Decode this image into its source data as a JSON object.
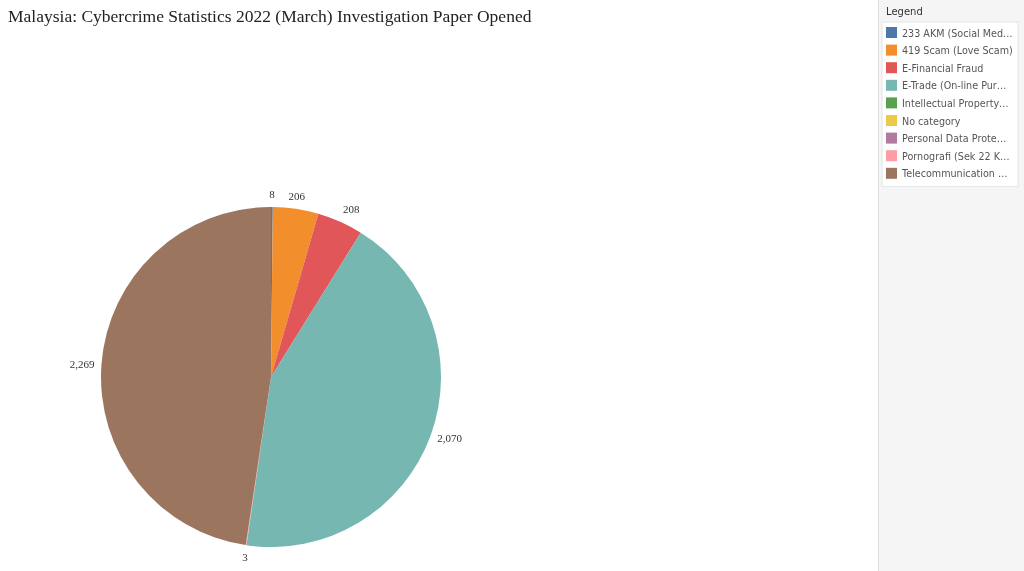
{
  "chart_data": {
    "type": "pie",
    "title": "Malaysia: Cybercrime Statistics 2022 (March) Investigation Paper Opened",
    "legend_title": "Legend",
    "categories": [
      "233 AKM (Social Med…",
      "419 Scam (Love Scam)",
      "E-Financial Fraud",
      "E-Trade (On-line Pur…",
      "Intellectual Property…",
      "No category",
      "Personal Data Prote…",
      "Pornografi (Sek 22 K…",
      "Telecommunication …"
    ],
    "values": [
      8,
      206,
      208,
      2070,
      null,
      null,
      null,
      3,
      2269
    ],
    "colors": [
      "#4e79a7",
      "#f28e2b",
      "#e15759",
      "#76b7b2",
      "#59a14f",
      "#edc948",
      "#b07aa1",
      "#ff9da7",
      "#9c755f"
    ],
    "value_labels": [
      "8",
      "206",
      "208",
      "2,070",
      null,
      null,
      null,
      "3",
      "2,269"
    ],
    "legend": "top right"
  }
}
